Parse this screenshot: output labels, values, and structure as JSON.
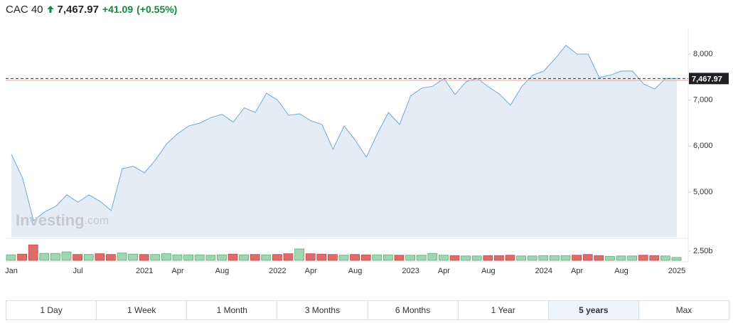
{
  "header": {
    "symbol": "CAC 40",
    "price": "7,467.97",
    "change": "+41.09",
    "change_percent": "(+0.55%)"
  },
  "chart_data": {
    "type": "line",
    "categories": [
      "Jan",
      null,
      null,
      null,
      null,
      null,
      "Jul",
      null,
      null,
      null,
      null,
      null,
      "2021",
      null,
      null,
      "Apr",
      null,
      null,
      null,
      "Aug",
      null,
      null,
      null,
      null,
      "2022",
      null,
      null,
      "Apr",
      null,
      null,
      null,
      "Aug",
      null,
      null,
      null,
      null,
      "2023",
      null,
      null,
      "Apr",
      null,
      null,
      null,
      "Aug",
      null,
      null,
      null,
      null,
      "2024",
      null,
      null,
      "Apr",
      null,
      null,
      null,
      "Aug",
      null,
      null,
      null,
      null,
      "2025"
    ],
    "series": [
      {
        "color": "#6fa8dc",
        "fill": "#e4edf6",
        "values": [
          5820,
          5310,
          4380,
          4570,
          4690,
          4940,
          4780,
          4940,
          4800,
          4600,
          5510,
          5560,
          5420,
          5700,
          6050,
          6270,
          6440,
          6500,
          6620,
          6690,
          6520,
          6830,
          6730,
          7150,
          7000,
          6670,
          6700,
          6550,
          6470,
          5930,
          6440,
          6130,
          5760,
          6270,
          6730,
          6470,
          7090,
          7260,
          7300,
          7470,
          7120,
          7400,
          7470,
          7290,
          7130,
          6890,
          7290,
          7540,
          7630,
          7890,
          8190,
          8000,
          8000,
          7490,
          7540,
          7630,
          7630,
          7350,
          7240,
          7470,
          7467.97
        ]
      }
    ],
    "ylim": [
      3995,
      8556
    ],
    "yticks": [
      {
        "value": 5000,
        "label": "5,000"
      },
      {
        "value": 6000,
        "label": "6,000"
      },
      {
        "value": 7000,
        "label": "7,000"
      },
      {
        "value": 8000,
        "label": "8,000"
      }
    ],
    "current_price": {
      "value": 7467.97,
      "label": "7,467.97"
    },
    "previous_close": 7426.88,
    "watermark": [
      "Investing",
      ".com"
    ],
    "volume": {
      "values": [
        1.5,
        1.7,
        4.2,
        1.9,
        1.9,
        2.3,
        1.6,
        1.6,
        1.8,
        1.6,
        2.0,
        1.7,
        1.6,
        1.6,
        1.8,
        1.5,
        1.5,
        1.5,
        1.4,
        1.5,
        1.7,
        1.5,
        1.6,
        1.5,
        1.6,
        1.8,
        3.1,
        1.8,
        1.7,
        1.6,
        1.4,
        1.6,
        1.5,
        1.5,
        1.5,
        1.4,
        1.4,
        1.4,
        1.9,
        1.4,
        1.3,
        1.2,
        1.2,
        1.3,
        1.3,
        1.4,
        1.2,
        1.2,
        1.3,
        1.3,
        1.3,
        1.4,
        1.6,
        1.3,
        1.1,
        1.2,
        1.2,
        1.4,
        1.3,
        1.2,
        0.8
      ],
      "colors": [
        "#9fd5b0",
        "#e06b6b",
        "#e06b6b",
        "#9fd5b0",
        "#9fd5b0",
        "#9fd5b0",
        "#e06b6b",
        "#9fd5b0",
        "#e06b6b",
        "#e06b6b",
        "#9fd5b0",
        "#9fd5b0",
        "#e06b6b",
        "#9fd5b0",
        "#9fd5b0",
        "#9fd5b0",
        "#9fd5b0",
        "#9fd5b0",
        "#9fd5b0",
        "#9fd5b0",
        "#e06b6b",
        "#9fd5b0",
        "#e06b6b",
        "#9fd5b0",
        "#e06b6b",
        "#e06b6b",
        "#9fd5b0",
        "#e06b6b",
        "#e06b6b",
        "#e06b6b",
        "#9fd5b0",
        "#e06b6b",
        "#e06b6b",
        "#9fd5b0",
        "#9fd5b0",
        "#e06b6b",
        "#9fd5b0",
        "#9fd5b0",
        "#9fd5b0",
        "#9fd5b0",
        "#e06b6b",
        "#9fd5b0",
        "#9fd5b0",
        "#e06b6b",
        "#e06b6b",
        "#e06b6b",
        "#9fd5b0",
        "#9fd5b0",
        "#9fd5b0",
        "#9fd5b0",
        "#9fd5b0",
        "#e06b6b",
        "#e06b6b",
        "#e06b6b",
        "#9fd5b0",
        "#9fd5b0",
        "#9fd5b0",
        "#e06b6b",
        "#e06b6b",
        "#9fd5b0",
        "#9fd5b0"
      ],
      "ylim": [
        0,
        5
      ],
      "yticks": [
        {
          "value": 2.5,
          "label": "2.50b"
        }
      ]
    }
  },
  "range_buttons": [
    "1 Day",
    "1 Week",
    "1 Month",
    "3 Months",
    "6 Months",
    "1 Year",
    "5 years",
    "Max"
  ],
  "selected_range": "5 years"
}
